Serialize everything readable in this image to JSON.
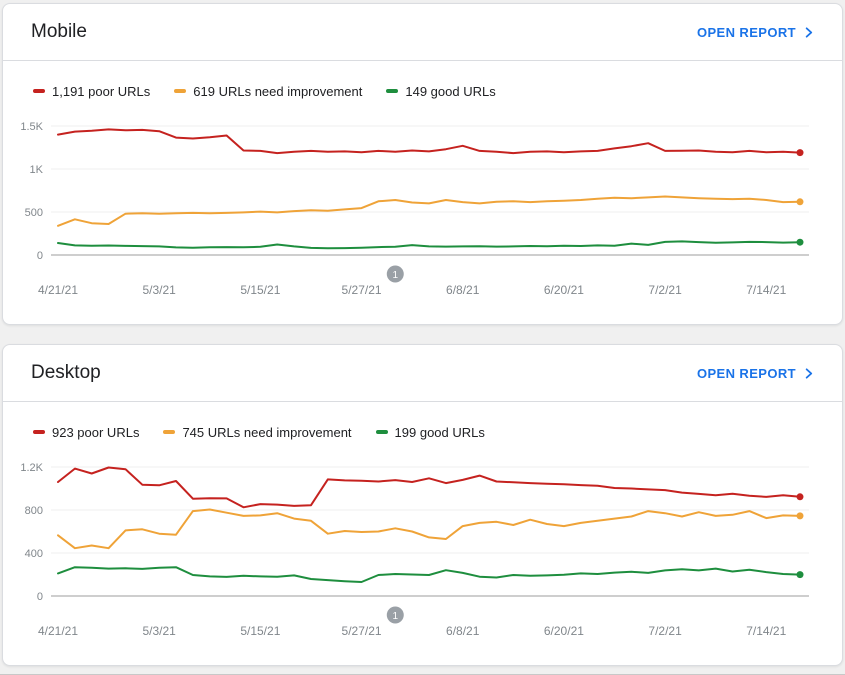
{
  "colors": {
    "poor": "#c5221f",
    "needs_improvement": "#efa338",
    "good": "#1e8e3e",
    "link": "#1a73e8",
    "axis_text": "#80868b",
    "gridline": "#efefef",
    "baseline": "#9e9e9e",
    "annotation_badge": "#9aa0a6"
  },
  "cards": [
    {
      "title": "Mobile",
      "open_report_label": "OPEN REPORT",
      "legend": [
        {
          "label": "1,191 poor URLs",
          "color_key": "poor"
        },
        {
          "label": "619 URLs need improvement",
          "color_key": "needs_improvement"
        },
        {
          "label": "149 good URLs",
          "color_key": "good"
        }
      ],
      "chart_data": {
        "type": "line",
        "title": "Mobile Core Web Vitals URL counts over time",
        "x_labels": [
          "4/21/21",
          "5/3/21",
          "5/15/21",
          "5/27/21",
          "6/8/21",
          "6/20/21",
          "7/2/21",
          "7/14/21"
        ],
        "x_label_interval_days": 12,
        "y_tick_labels": [
          "1.5K",
          "1K",
          "500",
          "0"
        ],
        "y_tick_values": [
          1500,
          1000,
          500,
          0
        ],
        "y_max": 1500,
        "grid": true,
        "annotation": {
          "label": "1",
          "day": 40
        },
        "sample_interval_days": 2,
        "series": [
          {
            "name": "poor URLs",
            "color_key": "poor",
            "current_value": 1191,
            "values": [
              1400,
              1435,
              1445,
              1460,
              1450,
              1455,
              1440,
              1365,
              1355,
              1370,
              1390,
              1215,
              1210,
              1185,
              1200,
              1210,
              1200,
              1205,
              1195,
              1210,
              1200,
              1215,
              1205,
              1230,
              1270,
              1210,
              1200,
              1185,
              1200,
              1205,
              1195,
              1205,
              1210,
              1240,
              1265,
              1300,
              1210,
              1212,
              1215,
              1200,
              1195,
              1210,
              1195,
              1200,
              1191
            ]
          },
          {
            "name": "URLs need improvement",
            "color_key": "needs_improvement",
            "current_value": 619,
            "values": [
              340,
              415,
              370,
              360,
              480,
              485,
              480,
              485,
              490,
              485,
              490,
              495,
              505,
              495,
              510,
              520,
              515,
              530,
              545,
              625,
              640,
              610,
              600,
              640,
              615,
              600,
              620,
              625,
              615,
              625,
              630,
              640,
              655,
              665,
              660,
              670,
              680,
              670,
              660,
              655,
              650,
              655,
              640,
              615,
              619
            ]
          },
          {
            "name": "good URLs",
            "color_key": "good",
            "current_value": 149,
            "values": [
              140,
              112,
              108,
              110,
              106,
              104,
              100,
              88,
              85,
              90,
              92,
              90,
              95,
              122,
              100,
              82,
              78,
              80,
              85,
              92,
              95,
              115,
              100,
              98,
              100,
              102,
              98,
              100,
              105,
              102,
              108,
              105,
              112,
              108,
              132,
              118,
              152,
              158,
              150,
              142,
              146,
              152,
              150,
              144,
              149
            ]
          }
        ]
      }
    },
    {
      "title": "Desktop",
      "open_report_label": "OPEN REPORT",
      "legend": [
        {
          "label": "923 poor URLs",
          "color_key": "poor"
        },
        {
          "label": "745 URLs need improvement",
          "color_key": "needs_improvement"
        },
        {
          "label": "199 good URLs",
          "color_key": "good"
        }
      ],
      "chart_data": {
        "type": "line",
        "title": "Desktop Core Web Vitals URL counts over time",
        "x_labels": [
          "4/21/21",
          "5/3/21",
          "5/15/21",
          "5/27/21",
          "6/8/21",
          "6/20/21",
          "7/2/21",
          "7/14/21"
        ],
        "x_label_interval_days": 12,
        "y_tick_labels": [
          "1.2K",
          "800",
          "400",
          "0"
        ],
        "y_tick_values": [
          1200,
          800,
          400,
          0
        ],
        "y_max": 1200,
        "grid": true,
        "annotation": {
          "label": "1",
          "day": 40
        },
        "sample_interval_days": 2,
        "series": [
          {
            "name": "poor URLs",
            "color_key": "poor",
            "current_value": 923,
            "values": [
              1060,
              1185,
              1140,
              1195,
              1180,
              1035,
              1030,
              1070,
              905,
              910,
              908,
              825,
              855,
              850,
              838,
              845,
              1085,
              1075,
              1072,
              1065,
              1078,
              1060,
              1095,
              1050,
              1080,
              1120,
              1065,
              1058,
              1050,
              1045,
              1040,
              1032,
              1025,
              1005,
              1000,
              992,
              985,
              962,
              950,
              938,
              952,
              932,
              922,
              938,
              923
            ]
          },
          {
            "name": "URLs need improvement",
            "color_key": "needs_improvement",
            "current_value": 745,
            "values": [
              565,
              445,
              470,
              445,
              610,
              620,
              580,
              570,
              790,
              805,
              775,
              745,
              750,
              770,
              720,
              700,
              580,
              605,
              595,
              600,
              630,
              600,
              545,
              530,
              650,
              680,
              690,
              660,
              710,
              670,
              650,
              680,
              700,
              720,
              740,
              790,
              770,
              740,
              780,
              745,
              755,
              790,
              725,
              750,
              745
            ]
          },
          {
            "name": "good URLs",
            "color_key": "good",
            "current_value": 199,
            "values": [
              210,
              268,
              262,
              255,
              258,
              252,
              262,
              268,
              195,
              182,
              178,
              188,
              182,
              180,
              192,
              158,
              148,
              138,
              130,
              195,
              205,
              200,
              195,
              240,
              215,
              180,
              172,
              195,
              188,
              192,
              198,
              210,
              205,
              218,
              225,
              215,
              238,
              248,
              238,
              255,
              228,
              245,
              222,
              205,
              199
            ]
          }
        ]
      }
    }
  ]
}
